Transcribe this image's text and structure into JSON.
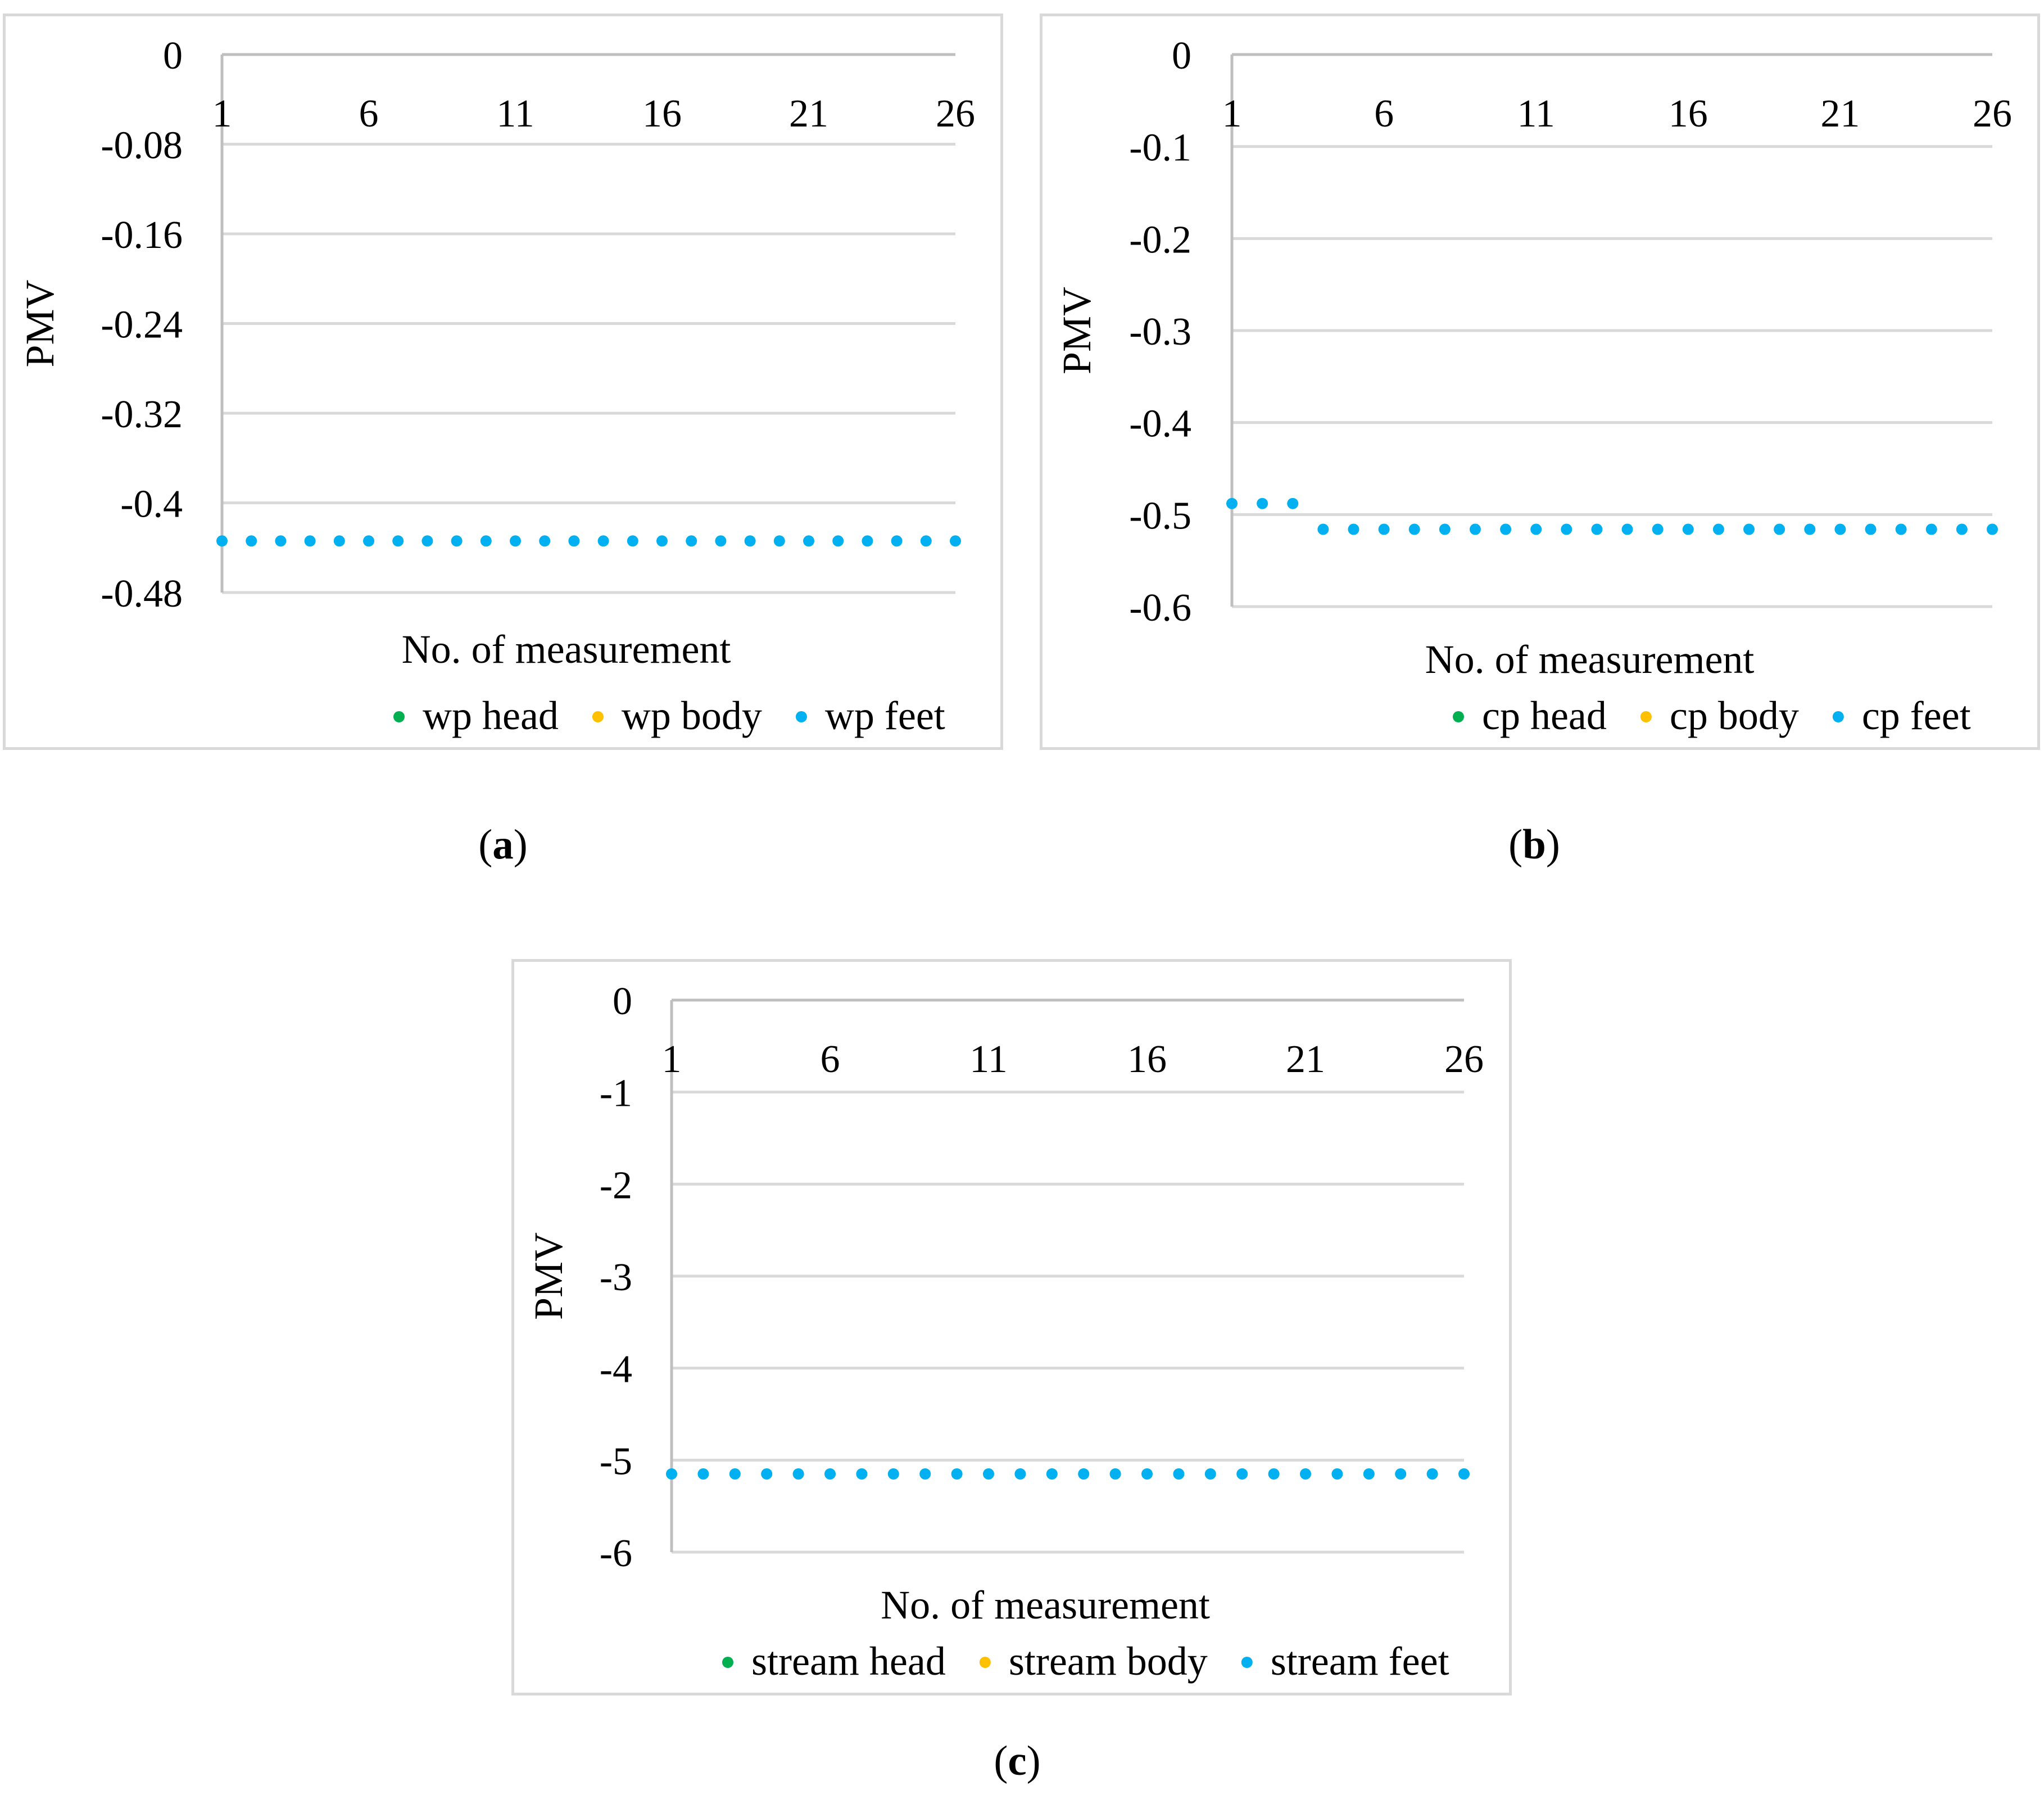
{
  "colors": {
    "grid": "#d9d9d9",
    "axis": "#bfbfbf",
    "head": "#00b050",
    "body": "#ffc000",
    "feet": "#00b0f0"
  },
  "captions": [
    {
      "open": "(",
      "letter": "a",
      "close": ")"
    },
    {
      "open": "(",
      "letter": "b",
      "close": ")"
    },
    {
      "open": "(",
      "letter": "c",
      "close": ")"
    }
  ],
  "chart_data": [
    {
      "type": "scatter",
      "title": "",
      "xlabel": "No. of measurement",
      "ylabel": "PMV",
      "ylim": [
        -0.48,
        0
      ],
      "yticks": [
        0,
        -0.08,
        -0.16,
        -0.24,
        -0.32,
        -0.4,
        -0.48
      ],
      "ytick_labels": [
        "0",
        "-0.08",
        "-0.16",
        "-0.24",
        "-0.32",
        "-0.4",
        "-0.48"
      ],
      "xlim": [
        1,
        26
      ],
      "xticks": [
        1,
        6,
        11,
        16,
        21,
        26
      ],
      "xtick_labels": [
        "1",
        "6",
        "11",
        "16",
        "21",
        "26"
      ],
      "legend": "bottom",
      "series": [
        {
          "name": "wp head",
          "key": "head",
          "values": []
        },
        {
          "name": "wp body",
          "key": "body",
          "values": []
        },
        {
          "name": "wp feet",
          "key": "feet",
          "values": [
            -0.434,
            -0.434,
            -0.434,
            -0.434,
            -0.434,
            -0.434,
            -0.434,
            -0.434,
            -0.434,
            -0.434,
            -0.434,
            -0.434,
            -0.434,
            -0.434,
            -0.434,
            -0.434,
            -0.434,
            -0.434,
            -0.434,
            -0.434,
            -0.434,
            -0.434,
            -0.434,
            -0.434,
            -0.434,
            -0.434
          ]
        }
      ]
    },
    {
      "type": "scatter",
      "title": "",
      "xlabel": "No. of measurement",
      "ylabel": "PMV",
      "ylim": [
        -0.6,
        0
      ],
      "yticks": [
        0,
        -0.1,
        -0.2,
        -0.3,
        -0.4,
        -0.5,
        -0.6
      ],
      "ytick_labels": [
        "0",
        "-0.1",
        "-0.2",
        "-0.3",
        "-0.4",
        "-0.5",
        "-0.6"
      ],
      "xlim": [
        1,
        26
      ],
      "xticks": [
        1,
        6,
        11,
        16,
        21,
        26
      ],
      "xtick_labels": [
        "1",
        "6",
        "11",
        "16",
        "21",
        "26"
      ],
      "legend": "bottom",
      "series": [
        {
          "name": "cp head",
          "key": "head",
          "values": []
        },
        {
          "name": "cp body",
          "key": "body",
          "values": []
        },
        {
          "name": "cp feet",
          "key": "feet",
          "values": [
            -0.488,
            -0.488,
            -0.488,
            -0.516,
            -0.516,
            -0.516,
            -0.516,
            -0.516,
            -0.516,
            -0.516,
            -0.516,
            -0.516,
            -0.516,
            -0.516,
            -0.516,
            -0.516,
            -0.516,
            -0.516,
            -0.516,
            -0.516,
            -0.516,
            -0.516,
            -0.516,
            -0.516,
            -0.516,
            -0.516
          ]
        }
      ]
    },
    {
      "type": "scatter",
      "title": "",
      "xlabel": "No. of measurement",
      "ylabel": "PMV",
      "ylim": [
        -6,
        0
      ],
      "yticks": [
        0,
        -1,
        -2,
        -3,
        -4,
        -5,
        -6
      ],
      "ytick_labels": [
        "0",
        "-1",
        "-2",
        "-3",
        "-4",
        "-5",
        "-6"
      ],
      "xlim": [
        1,
        26
      ],
      "xticks": [
        1,
        6,
        11,
        16,
        21,
        26
      ],
      "xtick_labels": [
        "1",
        "6",
        "11",
        "16",
        "21",
        "26"
      ],
      "legend": "bottom",
      "series": [
        {
          "name": "stream head",
          "key": "head",
          "values": []
        },
        {
          "name": "stream body",
          "key": "body",
          "values": []
        },
        {
          "name": "stream feet",
          "key": "feet",
          "values": [
            -5.15,
            -5.15,
            -5.15,
            -5.15,
            -5.15,
            -5.15,
            -5.15,
            -5.15,
            -5.15,
            -5.15,
            -5.15,
            -5.15,
            -5.15,
            -5.15,
            -5.15,
            -5.15,
            -5.15,
            -5.15,
            -5.15,
            -5.15,
            -5.15,
            -5.15,
            -5.15,
            -5.15,
            -5.15,
            -5.15
          ]
        }
      ]
    }
  ]
}
